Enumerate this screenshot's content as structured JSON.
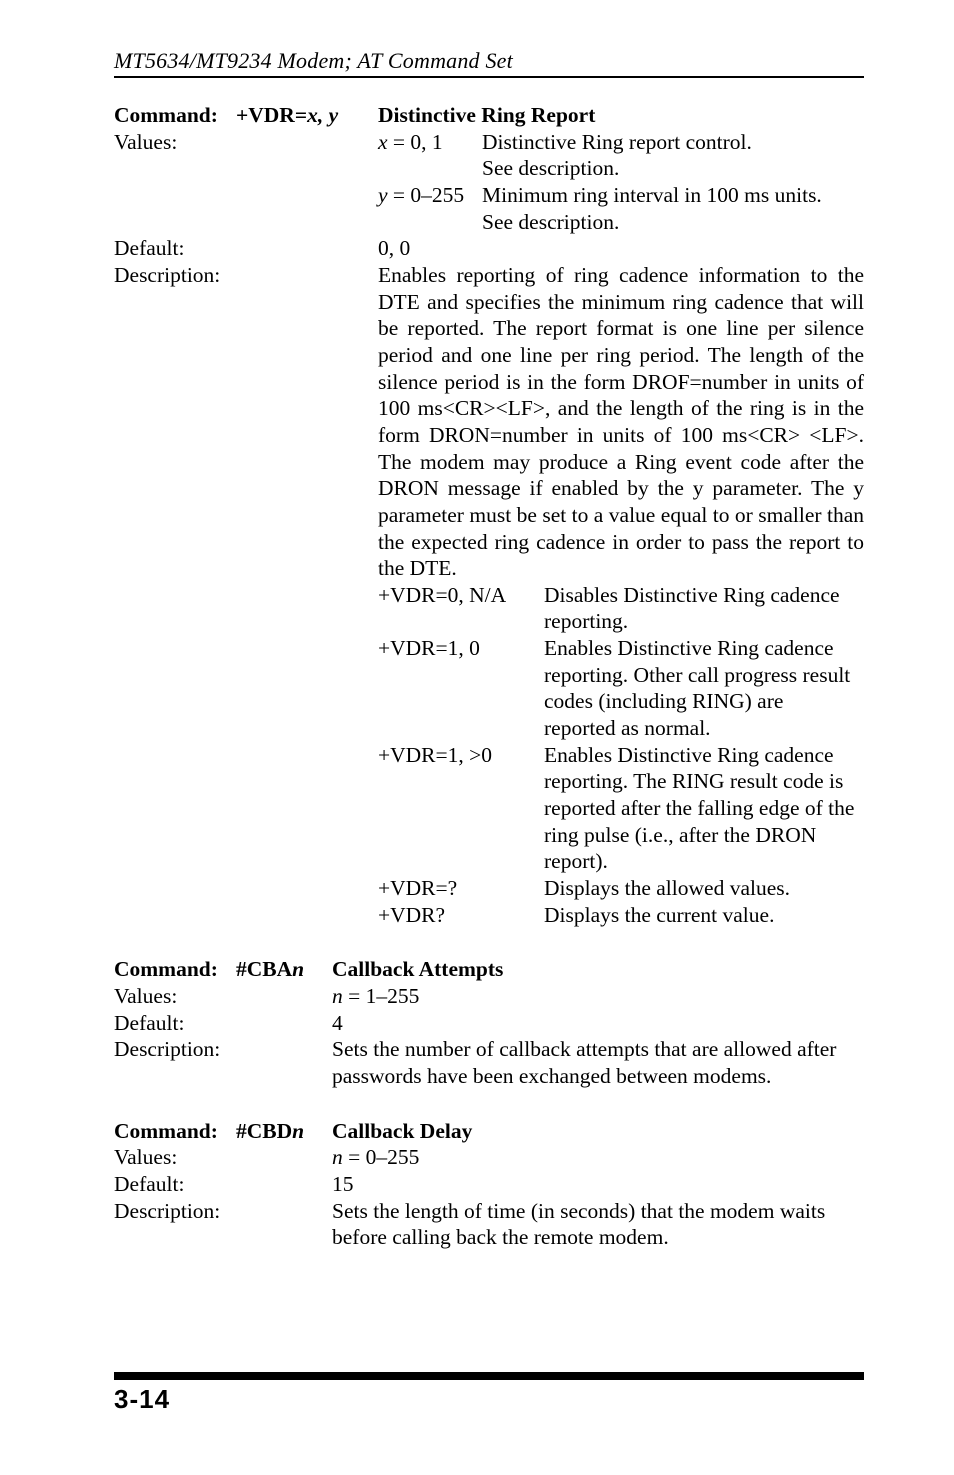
{
  "header": {
    "running_title": "MT5634/MT9234 Modem; AT Command Set"
  },
  "vdr": {
    "cmd_label": "Command:",
    "param_leadin": "+VDR=",
    "param_xy": "x, y",
    "title": "Distinctive Ring Report",
    "values_label": "Values:",
    "val_x_sym_pre": "x",
    "val_x_sym_post": " = 0, 1",
    "val_x_text_l1": "Distinctive Ring report control.",
    "val_x_text_l2": "See description.",
    "val_y_sym_pre": "y",
    "val_y_sym_post": " = 0–255",
    "val_y_text_l1": "Minimum ring interval in 100 ms units.",
    "val_y_text_l2": "See description.",
    "default_label": "Default:",
    "default_val": "0, 0",
    "desc_label": "Description:",
    "desc_body": "Enables reporting of ring cadence information to the DTE and specifies the minimum ring cadence that will be reported. The report format is one line per silence period and one line per ring period. The length of the silence period is in the form DROF=number in units of 100 ms<CR><LF>, and the length of the ring is in the form DRON=number in units of 100 ms<CR> <LF>. The modem may produce a Ring event code after the DRON message if enabled by the y parameter. The y parameter must be set to a value equal to or smaller than the expected ring cadence in order to pass the report to the DTE.",
    "sub": [
      {
        "key": "+VDR=0, N/A",
        "text": "Disables Distinctive Ring cadence reporting."
      },
      {
        "key": "+VDR=1, 0",
        "text": "Enables Distinctive Ring cadence reporting. Other call progress result codes (including RING) are reported as normal."
      },
      {
        "key": "+VDR=1, >0",
        "text": "Enables Distinctive Ring cadence reporting. The RING result code is reported after the falling edge of the ring pulse (i.e., after the DRON report)."
      },
      {
        "key": "+VDR=?",
        "text": "Displays the allowed values."
      },
      {
        "key": "+VDR?",
        "text": "Displays the current value."
      }
    ]
  },
  "cba": {
    "cmd_label": "Command:",
    "param_pre": "#CBA",
    "param_n": "n",
    "title": "Callback Attempts",
    "values_label": "Values:",
    "values_val_n": "n",
    "values_val_rest": " = 1–255",
    "default_label": "Default:",
    "default_val": "4",
    "desc_label": "Description:",
    "desc_text": "Sets the number of callback attempts that are allowed after passwords have been exchanged between modems."
  },
  "cbd": {
    "cmd_label": "Command:",
    "param_pre": "#CBD",
    "param_n": "n",
    "title": "Callback Delay",
    "values_label": "Values:",
    "values_val_n": "n",
    "values_val_rest": " = 0–255",
    "default_label": "Default:",
    "default_val": "15",
    "desc_label": "Description:",
    "desc_text": "Sets the length of time (in seconds) that the modem waits before calling back the remote modem."
  },
  "footer": {
    "page": "3-14"
  }
}
